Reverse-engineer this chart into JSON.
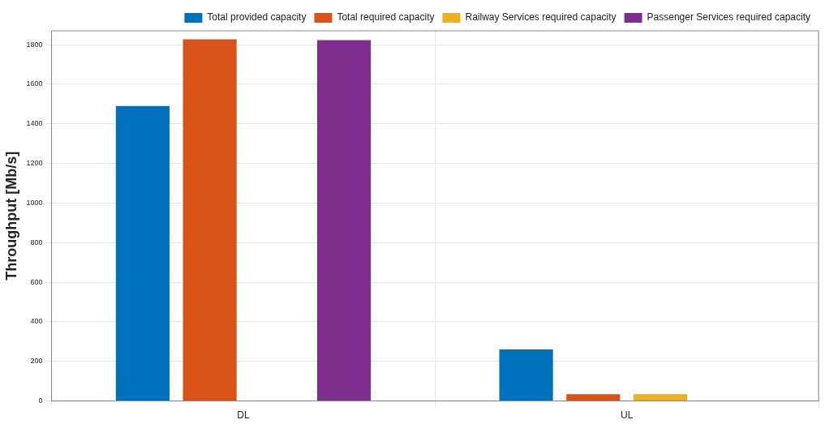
{
  "chart_data": {
    "type": "bar",
    "ylabel": "Throughput [Mb/s]",
    "categories": [
      "DL",
      "UL"
    ],
    "series": [
      {
        "name": "Total provided capacity",
        "color": "#0072bd",
        "values": [
          1490,
          260
        ]
      },
      {
        "name": "Total required capacity",
        "color": "#d95319",
        "values": [
          1827,
          34
        ]
      },
      {
        "name": "Railway Services required capacity",
        "color": "#edb120",
        "values": [
          0,
          34
        ]
      },
      {
        "name": "Passenger Services required capacity",
        "color": "#7e2f8e",
        "values": [
          1823,
          0
        ]
      }
    ],
    "ylim": [
      0,
      1870
    ],
    "yticks": [
      0,
      200,
      400,
      600,
      800,
      1000,
      1200,
      1400,
      1600,
      1800
    ],
    "grid": true,
    "legend": "top right"
  }
}
